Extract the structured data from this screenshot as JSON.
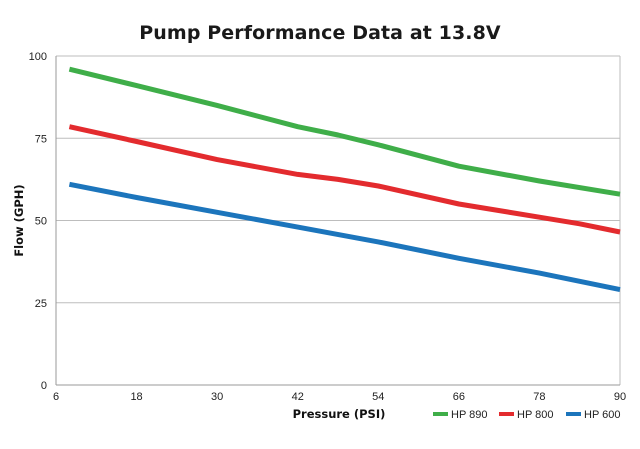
{
  "chart_data": {
    "type": "line",
    "title": "Pump Performance Data at 13.8V",
    "xlabel": "Pressure (PSI)",
    "ylabel": "Flow (GPH)",
    "xlim": [
      6,
      90
    ],
    "ylim": [
      0,
      100
    ],
    "x_ticks": [
      6,
      18,
      30,
      42,
      54,
      66,
      78,
      90
    ],
    "y_ticks": [
      0,
      25,
      50,
      75,
      100
    ],
    "grid": "horizontal",
    "legend_position": "bottom-right",
    "series": [
      {
        "name": "HP 890",
        "color": "#3fae49",
        "points": [
          [
            8,
            96
          ],
          [
            18,
            91
          ],
          [
            30,
            85
          ],
          [
            42,
            78.5
          ],
          [
            48,
            76
          ],
          [
            54,
            73
          ],
          [
            66,
            66.5
          ],
          [
            78,
            62
          ],
          [
            90,
            58
          ]
        ]
      },
      {
        "name": "HP 800",
        "color": "#e32b2e",
        "points": [
          [
            8,
            78.5
          ],
          [
            18,
            74
          ],
          [
            30,
            68.5
          ],
          [
            42,
            64
          ],
          [
            48,
            62.5
          ],
          [
            54,
            60.5
          ],
          [
            66,
            55
          ],
          [
            78,
            51
          ],
          [
            84,
            49
          ],
          [
            90,
            46.5
          ]
        ]
      },
      {
        "name": "HP 600",
        "color": "#1c75bc",
        "points": [
          [
            8,
            61
          ],
          [
            18,
            57
          ],
          [
            30,
            52.5
          ],
          [
            42,
            48
          ],
          [
            54,
            43.5
          ],
          [
            66,
            38.5
          ],
          [
            78,
            34
          ],
          [
            90,
            29
          ]
        ]
      }
    ]
  }
}
